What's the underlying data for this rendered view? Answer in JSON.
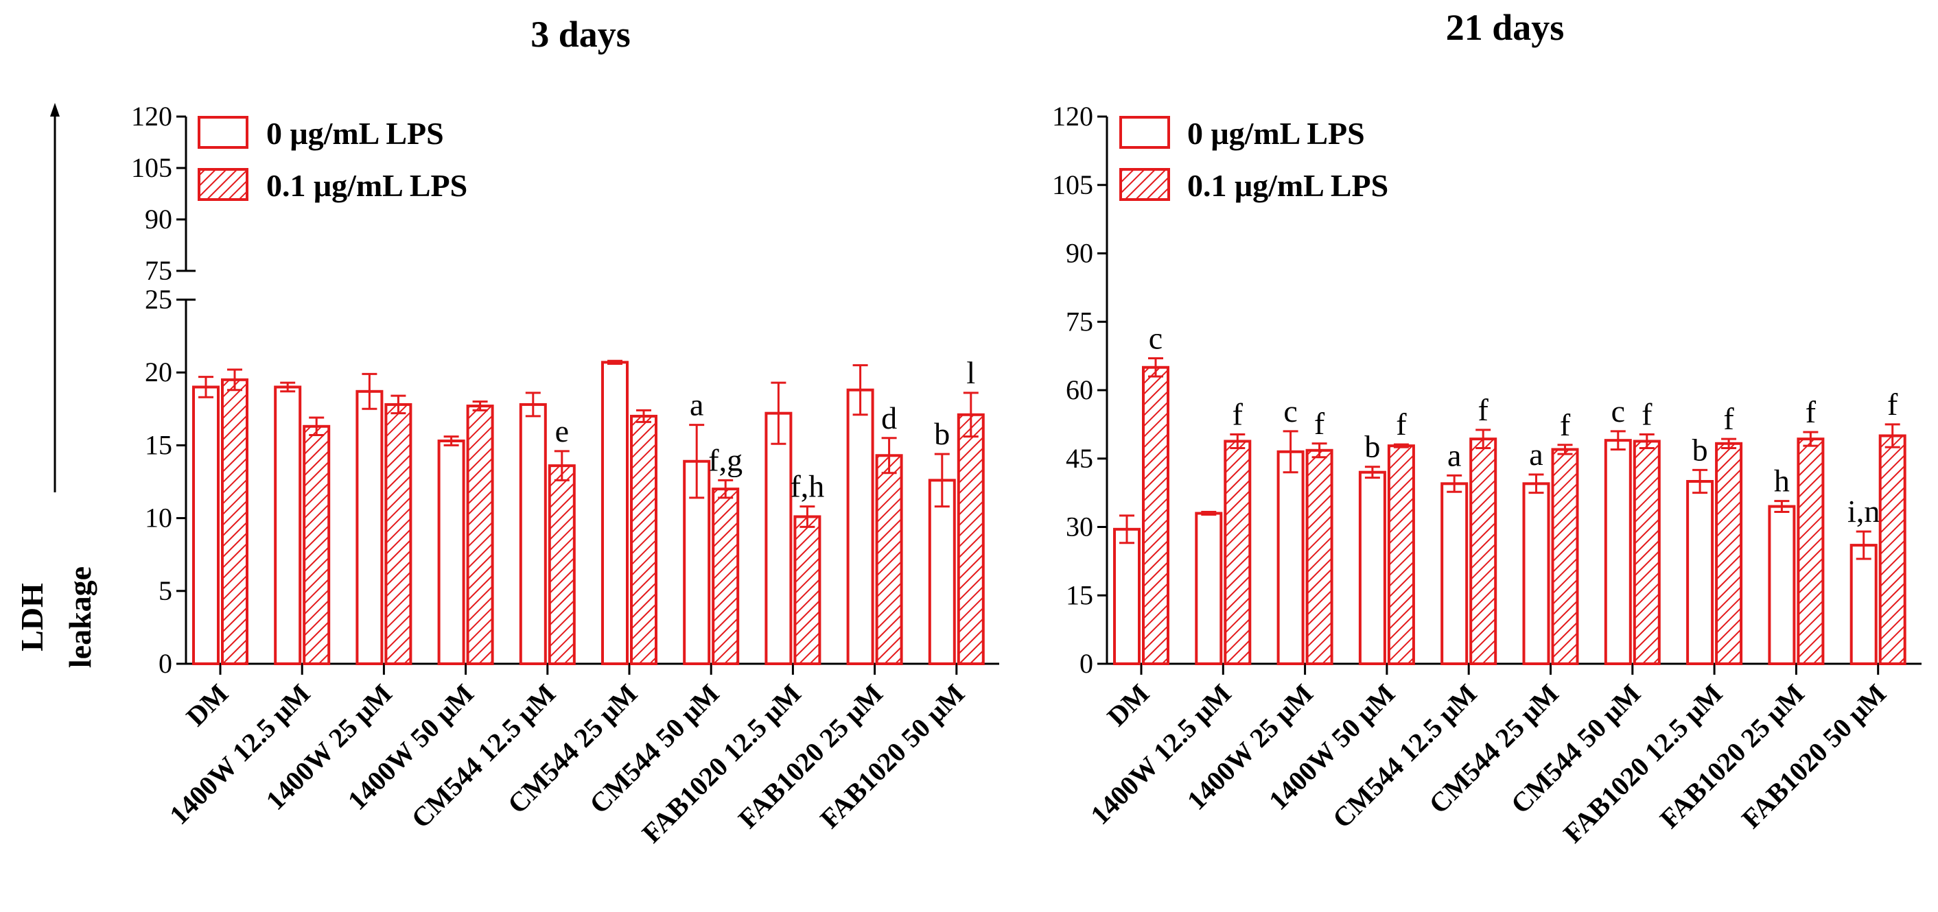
{
  "colors": {
    "bar": "#e41a1c",
    "axis": "#000000"
  },
  "ylabel_line1": "LDH",
  "ylabel_line2": "leakage",
  "chart_data": [
    {
      "type": "bar",
      "title": "3 days",
      "ylim": [
        0,
        120
      ],
      "broken_axis": {
        "lower": [
          0,
          25
        ],
        "upper": [
          75,
          120
        ]
      },
      "yticks_lower": [
        0,
        5,
        10,
        15,
        20,
        25
      ],
      "yticks_upper": [
        75,
        90,
        105,
        120
      ],
      "categories": [
        "DM",
        "1400W 12.5 μM",
        "1400W 25 μM",
        "1400W 50 μM",
        "CM544 12.5 μM",
        "CM544 25 μM",
        "CM544 50 μM",
        "FAB1020 12.5 μM",
        "FAB1020 25 μM",
        "FAB1020 50 μM"
      ],
      "series": [
        {
          "name": "0 μg/mL LPS",
          "fill": "open",
          "values": [
            19.0,
            19.0,
            18.7,
            15.3,
            17.8,
            20.7,
            13.9,
            17.2,
            18.8,
            12.6
          ],
          "errors": [
            0.7,
            0.3,
            1.2,
            0.3,
            0.8,
            0.1,
            2.5,
            2.1,
            1.7,
            1.8
          ],
          "annotations": [
            "",
            "",
            "",
            "",
            "",
            "",
            "a",
            "",
            "",
            "b"
          ]
        },
        {
          "name": "0.1 μg/mL LPS",
          "fill": "hatched",
          "values": [
            19.5,
            16.3,
            17.8,
            17.7,
            13.6,
            17.0,
            12.0,
            10.1,
            14.3,
            17.1
          ],
          "errors": [
            0.7,
            0.6,
            0.6,
            0.3,
            1.0,
            0.4,
            0.6,
            0.7,
            1.2,
            1.5
          ],
          "annotations": [
            "",
            "",
            "",
            "",
            "e",
            "",
            "f,g",
            "f,h",
            "d",
            "l"
          ]
        }
      ],
      "legend": "top-left"
    },
    {
      "type": "bar",
      "title": "21 days",
      "ylim": [
        0,
        120
      ],
      "yticks": [
        0,
        15,
        30,
        45,
        60,
        75,
        90,
        105,
        120
      ],
      "categories": [
        "DM",
        "1400W 12.5 μM",
        "1400W 25 μM",
        "1400W 50 μM",
        "CM544 12.5 μM",
        "CM544 25 μM",
        "CM544 50 μM",
        "FAB1020 12.5 μM",
        "FAB1020 25 μM",
        "FAB1020 50 μM"
      ],
      "series": [
        {
          "name": "0 μg/mL LPS",
          "fill": "open",
          "values": [
            29.5,
            33.0,
            46.5,
            42.0,
            39.5,
            39.5,
            49.0,
            40.0,
            34.5,
            26.0
          ],
          "errors": [
            3.0,
            0.3,
            4.5,
            1.2,
            1.8,
            2.0,
            2.0,
            2.5,
            1.2,
            3.0
          ],
          "annotations": [
            "",
            "",
            "c",
            "b",
            "a",
            "a",
            "c",
            "b",
            "h",
            "i,n"
          ]
        },
        {
          "name": "0.1 μg/mL LPS",
          "fill": "hatched",
          "values": [
            65.0,
            48.8,
            46.8,
            47.8,
            49.3,
            47.0,
            48.8,
            48.3,
            49.3,
            50.0
          ],
          "errors": [
            2.0,
            1.5,
            1.5,
            0.3,
            2.0,
            1.0,
            1.5,
            1.0,
            1.5,
            2.5
          ],
          "annotations": [
            "c",
            "f",
            "f",
            "f",
            "f",
            "f",
            "f",
            "f",
            "f",
            "f"
          ]
        }
      ],
      "legend": "top-left"
    }
  ]
}
